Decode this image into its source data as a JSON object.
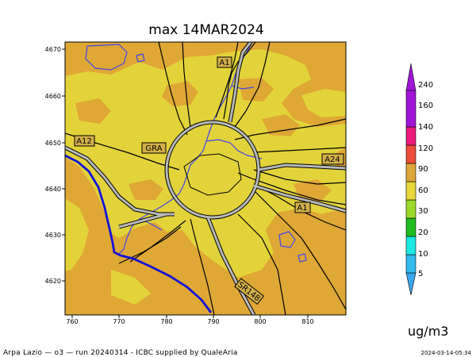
{
  "header": {
    "title": "max 14MAR2024"
  },
  "footer": {
    "credit": "Arpa Lazio — o3 — run 20240314 - ICBC supplied by QualeAria",
    "timestamp": "2024-03-14-05:34"
  },
  "map": {
    "x_ticks": [
      "760",
      "770",
      "780",
      "790",
      "800",
      "810"
    ],
    "y_ticks": [
      "4670",
      "4660",
      "4650",
      "4640",
      "4630",
      "4620"
    ],
    "road_labels": [
      "A1",
      "A12",
      "GRA",
      "A24",
      "A1",
      "SR148"
    ],
    "colors": {
      "background_field": "#dfa734",
      "patch_field": "#e2d33a",
      "coastline": "#1212d8",
      "rivers": "#4444ee",
      "roads": "#000000",
      "ring_road": "#b9b9b9"
    }
  },
  "legend": {
    "unit": "ug/m3",
    "bins": [
      {
        "label": "5",
        "color": "#3aa8ee"
      },
      {
        "label": "10",
        "color": "#34bbee"
      },
      {
        "label": "20",
        "color": "#1ce8e4"
      },
      {
        "label": "30",
        "color": "#21bc21"
      },
      {
        "label": "60",
        "color": "#9cd82a"
      },
      {
        "label": "90",
        "color": "#e6d73a"
      },
      {
        "label": "120",
        "color": "#dda63a"
      },
      {
        "label": "140",
        "color": "#ee4c3a"
      },
      {
        "label": "160",
        "color": "#ea1a78"
      },
      {
        "label": "240",
        "color": "#a016d6"
      }
    ]
  }
}
